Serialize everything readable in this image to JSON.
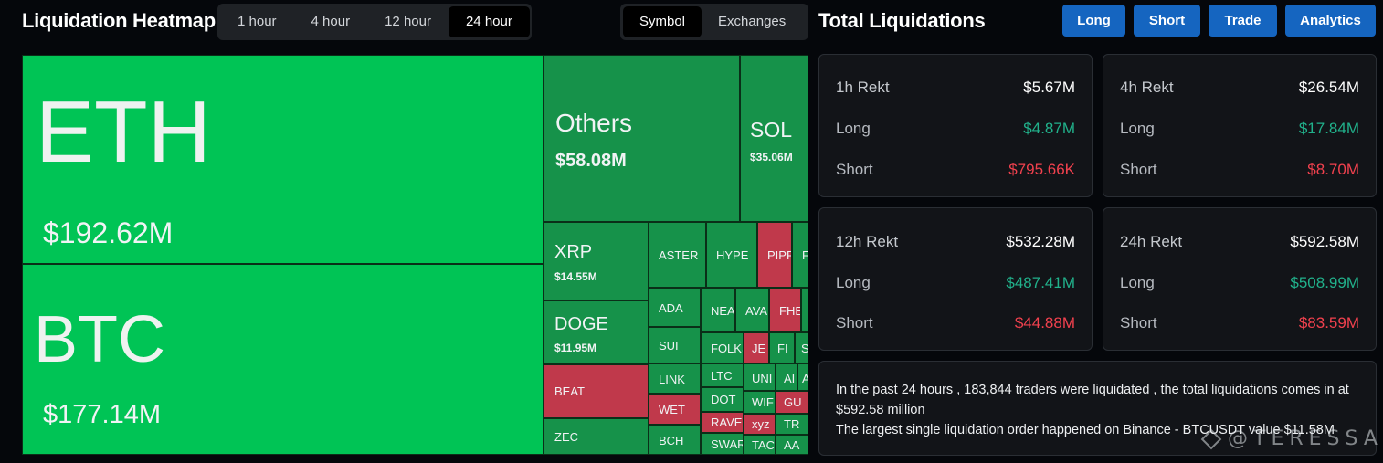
{
  "heatmap": {
    "title": "Liquidation Heatmap",
    "time_options": [
      "1 hour",
      "4 hour",
      "12 hour",
      "24 hour"
    ],
    "time_selected": "24 hour",
    "view_options": [
      "Symbol",
      "Exchanges"
    ],
    "view_selected": "Symbol"
  },
  "tiles": {
    "eth": {
      "symbol": "ETH",
      "value": "$192.62M"
    },
    "btc": {
      "symbol": "BTC",
      "value": "$177.14M"
    },
    "others": {
      "symbol": "Others",
      "value": "$58.08M"
    },
    "sol": {
      "symbol": "SOL",
      "value": "$35.06M"
    },
    "xrp": {
      "symbol": "XRP",
      "value": "$14.55M"
    },
    "doge": {
      "symbol": "DOGE",
      "value": "$11.95M"
    },
    "beat": {
      "symbol": "BEAT"
    },
    "zec": {
      "symbol": "ZEC"
    },
    "aster": {
      "symbol": "ASTER"
    },
    "hype": {
      "symbol": "HYPE"
    },
    "pipp": {
      "symbol": "PIPP"
    },
    "f1": {
      "symbol": "F"
    },
    "ada": {
      "symbol": "ADA"
    },
    "nea": {
      "symbol": "NEA"
    },
    "ava": {
      "symbol": "AVA"
    },
    "fhe": {
      "symbol": "FHE"
    },
    "sui": {
      "symbol": "SUI"
    },
    "folks": {
      "symbol": "FOLKS"
    },
    "je": {
      "symbol": "JE"
    },
    "fi": {
      "symbol": "FI"
    },
    "s1": {
      "symbol": "S"
    },
    "link": {
      "symbol": "LINK"
    },
    "ltc": {
      "symbol": "LTC"
    },
    "uni": {
      "symbol": "UNI"
    },
    "ai": {
      "symbol": "AI"
    },
    "a1": {
      "symbol": "A"
    },
    "wet": {
      "symbol": "WET"
    },
    "dot": {
      "symbol": "DOT"
    },
    "wif": {
      "symbol": "WIF"
    },
    "gu": {
      "symbol": "GU"
    },
    "rave": {
      "symbol": "RAVE"
    },
    "xyz": {
      "symbol": "xyz"
    },
    "tr": {
      "symbol": "TR"
    },
    "bch": {
      "symbol": "BCH"
    },
    "swar": {
      "symbol": "SWAR"
    },
    "tac": {
      "symbol": "TAC"
    },
    "aa": {
      "symbol": "AA"
    }
  },
  "total": {
    "title": "Total Liquidations",
    "buttons": [
      "Long",
      "Short",
      "Trade",
      "Analytics"
    ],
    "cards": [
      {
        "period": "1h Rekt",
        "total": "$5.67M",
        "long_label": "Long",
        "long": "$4.87M",
        "short_label": "Short",
        "short": "$795.66K"
      },
      {
        "period": "4h Rekt",
        "total": "$26.54M",
        "long_label": "Long",
        "long": "$17.84M",
        "short_label": "Short",
        "short": "$8.70M"
      },
      {
        "period": "12h Rekt",
        "total": "$532.28M",
        "long_label": "Long",
        "long": "$487.41M",
        "short_label": "Short",
        "short": "$44.88M"
      },
      {
        "period": "24h Rekt",
        "total": "$592.58M",
        "long_label": "Long",
        "long": "$508.99M",
        "short_label": "Short",
        "short": "$83.59M"
      }
    ],
    "summary_line1": "In the past 24 hours , 183,844 traders were liquidated , the total liquidations comes in at $592.58 million",
    "summary_line2": "The largest single liquidation order happened on Binance - BTCUSDT value $11.58M"
  },
  "watermark": "@TERESSA",
  "colors": {
    "green_big": "#00c455",
    "green_mid": "#16924a",
    "red": "#c0394b",
    "accent_blue": "#1565c0",
    "long": "#21b18b",
    "short": "#f1414e"
  }
}
